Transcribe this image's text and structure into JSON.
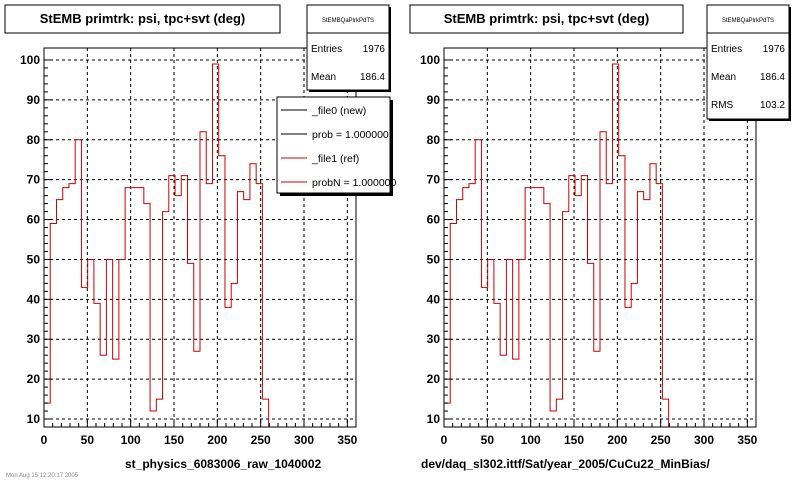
{
  "panels": [
    {
      "id": "left",
      "title": "StEMB primtrk: psi, tpc+svt (deg)",
      "stats": {
        "name": "StEMBQaPlrkPdTS",
        "rows": [
          {
            "label": "Entries",
            "value": "1976"
          },
          {
            "label": "Mean",
            "value": "186.4"
          }
        ]
      },
      "legend": {
        "entries": [
          {
            "label": "_file0 (new)",
            "color": "#000000"
          },
          {
            "label": "prob = 1.000000",
            "color": "#000000"
          },
          {
            "label": "_file1 (ref)",
            "color": "#cc0000"
          },
          {
            "label": "probN = 1.000000",
            "color": "#cc0000"
          }
        ]
      },
      "caption": "st_physics_6083006_raw_1040002"
    },
    {
      "id": "right",
      "title": "StEMB primtrk: psi, tpc+svt (deg)",
      "stats": {
        "name": "StEMBQaPlrkPdTS",
        "rows": [
          {
            "label": "Entries",
            "value": "1976"
          },
          {
            "label": "Mean",
            "value": "186.4"
          },
          {
            "label": "RMS",
            "value": "103.2"
          }
        ]
      },
      "legend": null,
      "caption": "dev/daq_sl302.ittf/Sat/year_2005/CuCu22_MinBias/"
    }
  ],
  "footer_text": "Mon Aug 15 12:20:17 2005",
  "chart_data": [
    {
      "type": "step",
      "title": "StEMB primtrk: psi, tpc+svt (deg)",
      "xlabel": "",
      "ylabel": "",
      "xlim": [
        0,
        360
      ],
      "ylim": [
        8,
        103
      ],
      "xticks": [
        0,
        50,
        100,
        150,
        200,
        250,
        300,
        350
      ],
      "yticks": [
        10,
        20,
        30,
        40,
        50,
        60,
        70,
        80,
        90,
        100
      ],
      "grid": true,
      "bin_width": 7.2,
      "series": [
        {
          "color": "#cc0000",
          "values": [
            14,
            59,
            65,
            68,
            69,
            80,
            43,
            50,
            39,
            26,
            50,
            25,
            50,
            68,
            68,
            68,
            64,
            12,
            15,
            62,
            71,
            66,
            71,
            49,
            27,
            82,
            69,
            99,
            76,
            38,
            44,
            67,
            65,
            74,
            69,
            15
          ]
        }
      ]
    },
    {
      "type": "step",
      "title": "StEMB primtrk: psi, tpc+svt (deg)",
      "xlabel": "",
      "ylabel": "",
      "xlim": [
        0,
        360
      ],
      "ylim": [
        8,
        103
      ],
      "xticks": [
        0,
        50,
        100,
        150,
        200,
        250,
        300,
        350
      ],
      "yticks": [
        10,
        20,
        30,
        40,
        50,
        60,
        70,
        80,
        90,
        100
      ],
      "grid": true,
      "bin_width": 7.2,
      "series": [
        {
          "color": "#cc0000",
          "values": [
            14,
            59,
            65,
            68,
            69,
            80,
            43,
            50,
            39,
            26,
            50,
            25,
            50,
            68,
            68,
            68,
            64,
            12,
            15,
            62,
            71,
            66,
            71,
            49,
            27,
            82,
            69,
            99,
            76,
            38,
            44,
            67,
            65,
            74,
            69,
            15
          ]
        }
      ]
    }
  ]
}
